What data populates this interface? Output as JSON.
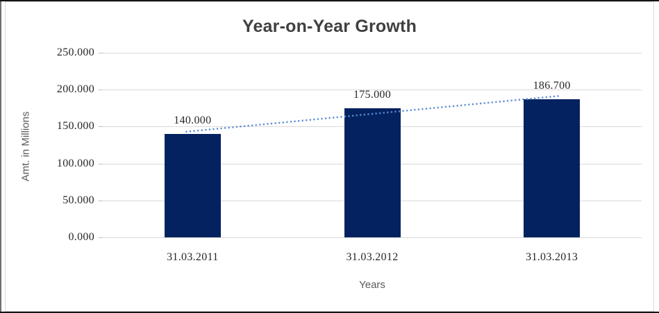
{
  "chart_data": {
    "type": "bar",
    "title": "Year-on-Year Growth",
    "xlabel": "Years",
    "ylabel": "Amt. in Millions",
    "categories": [
      "31.03.2011",
      "31.03.2012",
      "31.03.2013"
    ],
    "values": [
      140000,
      175000,
      186700
    ],
    "value_labels": [
      "140.000",
      "175.000",
      "186.700"
    ],
    "ylim": [
      0,
      250000
    ],
    "y_ticks": [
      {
        "value": 0,
        "label": "0.000"
      },
      {
        "value": 50000,
        "label": "50.000"
      },
      {
        "value": 100000,
        "label": "100.000"
      },
      {
        "value": 150000,
        "label": "150.000"
      },
      {
        "value": 200000,
        "label": "200.000"
      },
      {
        "value": 250000,
        "label": "250.000"
      }
    ],
    "grid": true,
    "legend": "none",
    "trendline": {
      "type": "linear",
      "style": "dotted"
    },
    "colors": {
      "bar": "#04225f",
      "trendline": "#5b8bd4",
      "gridline": "#d9d9d9",
      "tick": "#bfbfbf",
      "title_text": "#404040",
      "axis_text": "#262626",
      "axis_title_text": "#595959"
    }
  }
}
